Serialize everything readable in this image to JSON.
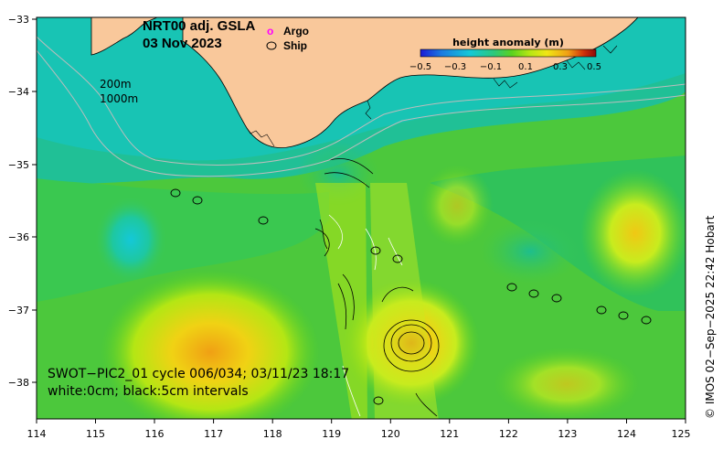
{
  "map": {
    "title": "NRT00 adj. GSLA",
    "date": "03 Nov 2023",
    "legend": {
      "argo_symbol": "o",
      "argo_label": "Argo",
      "ship_label": "Ship"
    },
    "isobaths": [
      "200m",
      "1000m"
    ],
    "colorbar": {
      "title": "height anomaly (m)",
      "ticks": [
        "−0.5",
        "−0.3",
        "−0.1",
        "0.1",
        "0.3",
        "0.5"
      ],
      "range": [
        -0.5,
        0.5
      ],
      "colors": [
        "#1a1ad6",
        "#1a7ae0",
        "#14c8d8",
        "#2cc87a",
        "#5ad21e",
        "#b4e614",
        "#f0e614",
        "#f0a014",
        "#d0320a",
        "#8c0a0a"
      ]
    },
    "swot_note_line1": "SWOT−PIC2_01 cycle 006/034; 03/11/23 18:17",
    "swot_note_line2": "white:0cm; black:5cm intervals",
    "credit": "© IMOS 02−Sep−2025 22:42 Hobart",
    "x_ticks": [
      "114",
      "115",
      "116",
      "117",
      "118",
      "119",
      "120",
      "121",
      "122",
      "123",
      "124",
      "125"
    ],
    "y_ticks": [
      "−33",
      "−34",
      "−35",
      "−36",
      "−37",
      "−38"
    ],
    "colors": {
      "land": "#f9c89b",
      "coast": "#000000",
      "ship_marker": "#000000",
      "argo_marker": "#ff00ff"
    }
  }
}
